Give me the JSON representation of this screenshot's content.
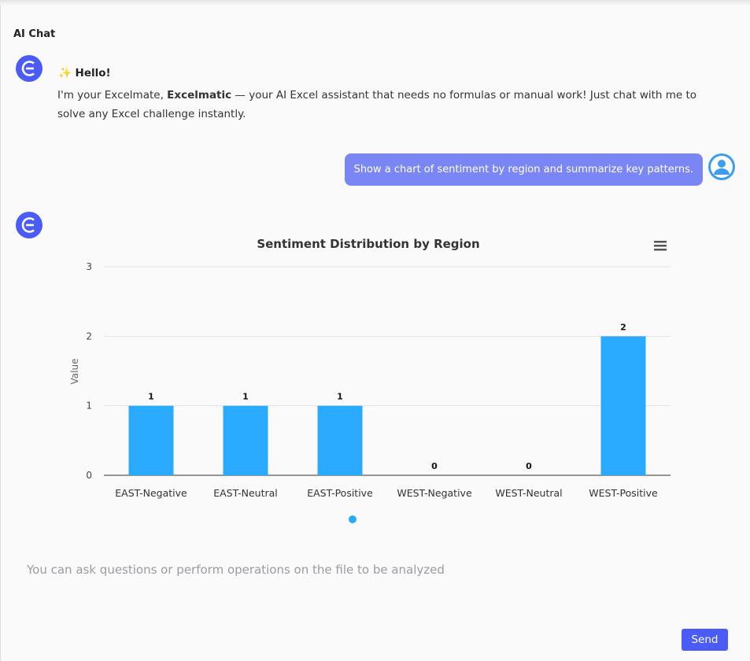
{
  "header": {
    "title": "AI Chat"
  },
  "messages": {
    "greeting_title": "Hello!",
    "greeting_pre": "I'm your Excelmate, ",
    "greeting_bold": "Excelmatic",
    "greeting_post": " — your AI Excel assistant that needs no formulas or manual work! Just chat with me to solve any Excel challenge instantly.",
    "user_prompt": "Show a chart of sentiment by region and summarize key patterns."
  },
  "input": {
    "placeholder": "You can ask questions or perform operations on the file to be analyzed",
    "send_label": "Send"
  },
  "colors": {
    "accent": "#4a5cf5",
    "bar": "#2aaaff",
    "user_bubble": "#7b86f5"
  },
  "chart_data": {
    "type": "bar",
    "title": "Sentiment Distribution by Region",
    "ylabel": "Value",
    "xlabel": "",
    "categories": [
      "EAST-Negative",
      "EAST-Neutral",
      "EAST-Positive",
      "WEST-Negative",
      "WEST-Neutral",
      "WEST-Positive"
    ],
    "values": [
      1,
      1,
      1,
      0,
      0,
      2
    ],
    "ylim": [
      0,
      3
    ],
    "yticks": [
      "0",
      "1",
      "2",
      "3"
    ],
    "grid": true,
    "data_labels": true,
    "legend": "bottom"
  }
}
